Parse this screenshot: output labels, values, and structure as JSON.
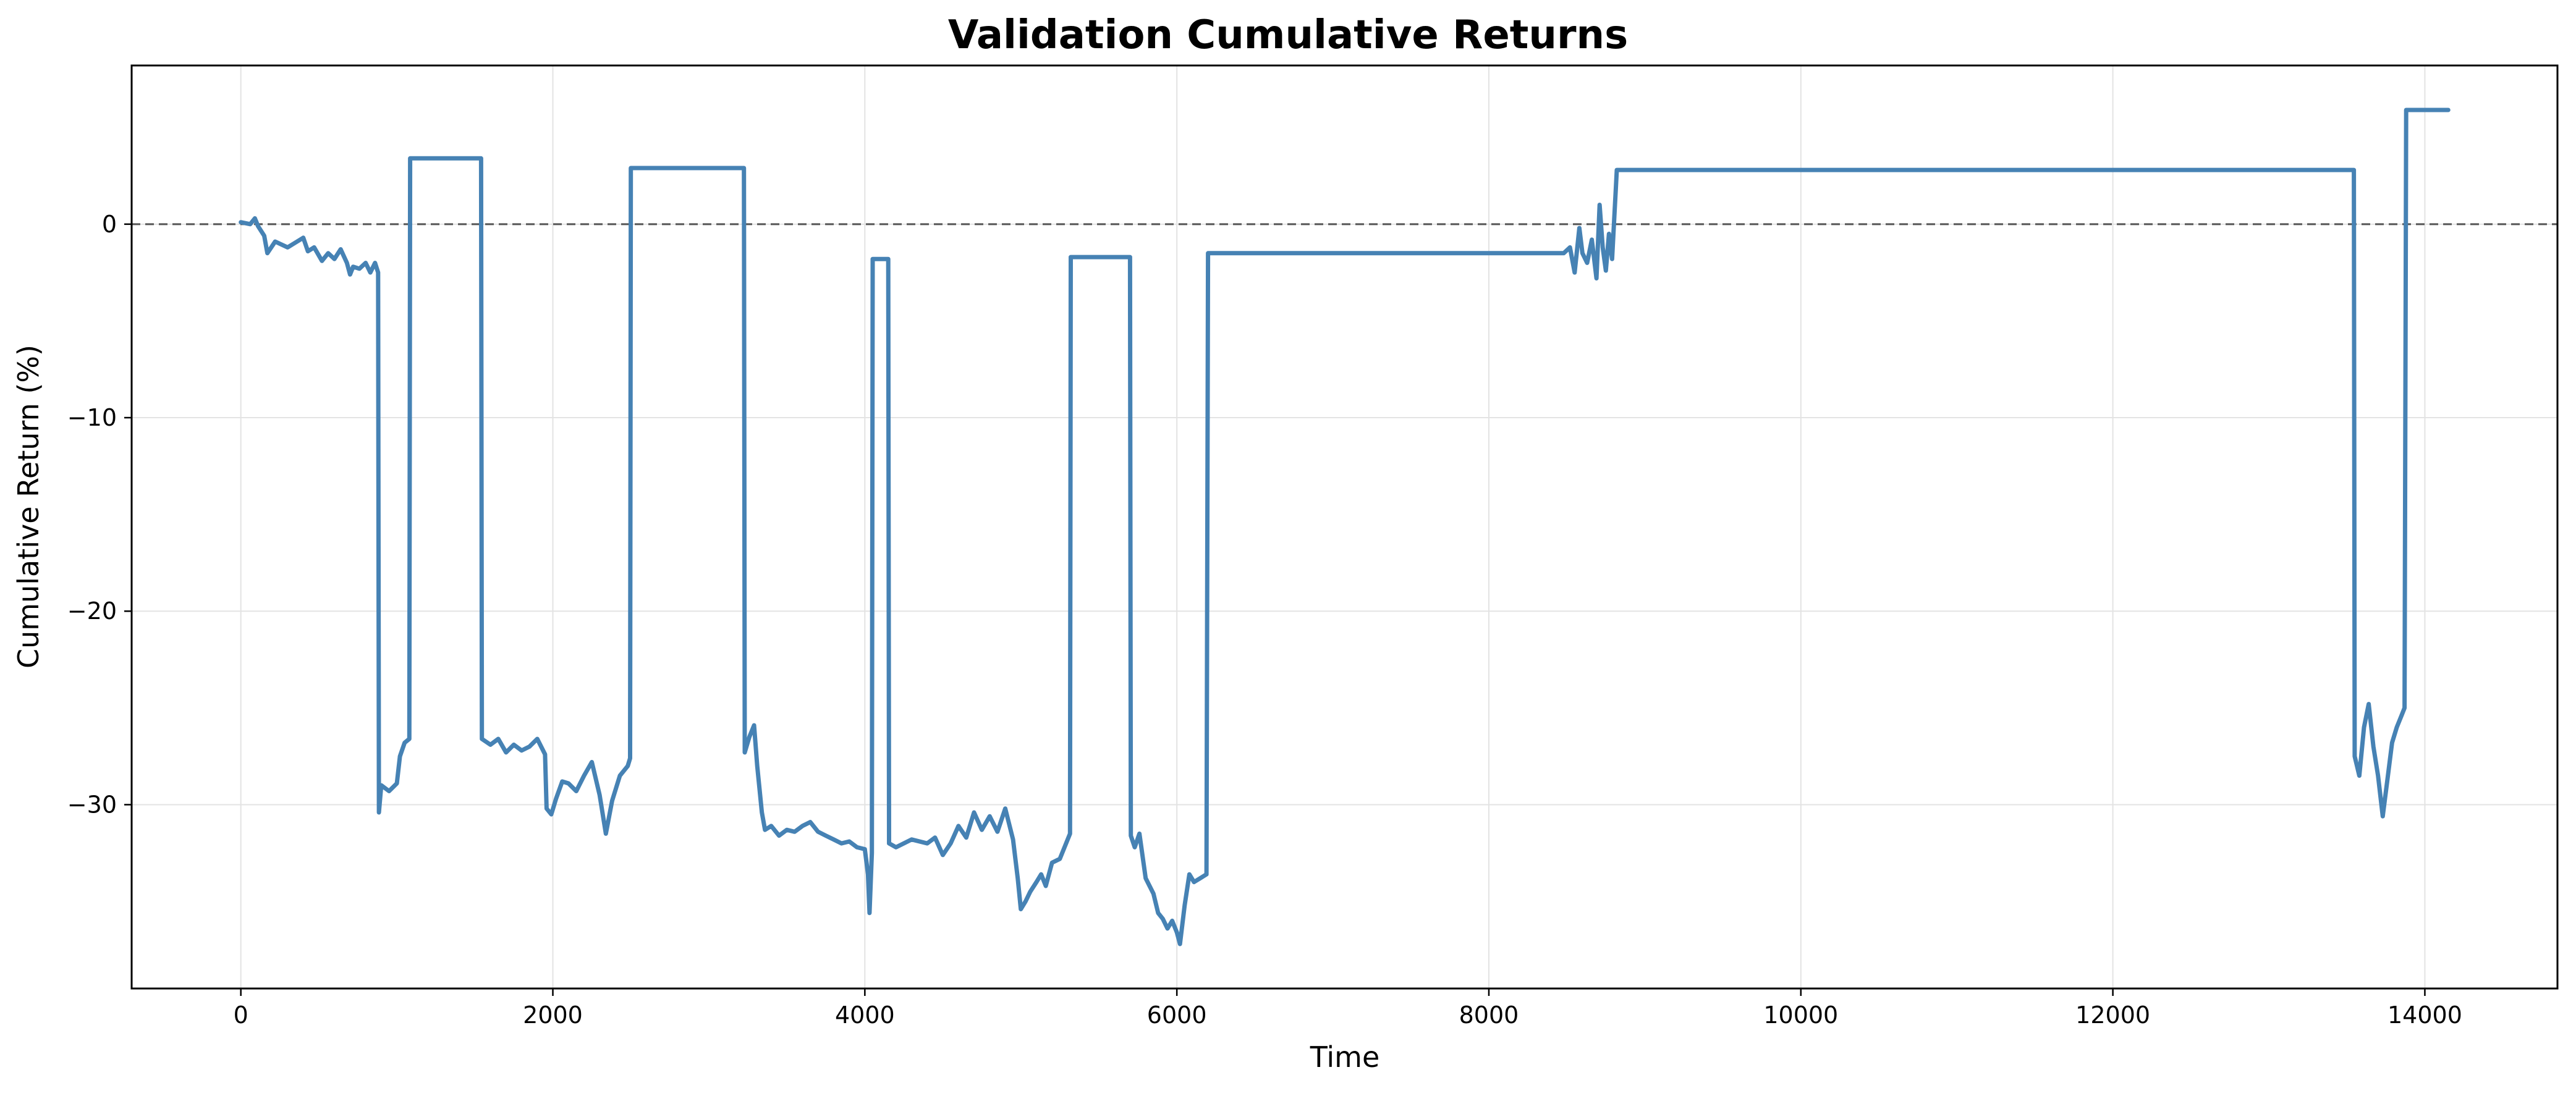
{
  "chart_data": {
    "type": "line",
    "title": "Validation Cumulative Returns",
    "xlabel": "Time",
    "ylabel": "Cumulative Return (%)",
    "xlim": [
      -700,
      14850
    ],
    "ylim": [
      -39.5,
      8.2
    ],
    "xticks": [
      0,
      2000,
      4000,
      6000,
      8000,
      10000,
      12000,
      14000
    ],
    "yticks": [
      -30,
      -20,
      -10,
      0
    ],
    "xtick_labels": [
      "0",
      "2000",
      "4000",
      "6000",
      "8000",
      "10000",
      "12000",
      "14000"
    ],
    "ytick_labels": [
      "−30",
      "−20",
      "−10",
      "0"
    ],
    "grid": true,
    "reference_line": {
      "y": 0,
      "style": "dashed",
      "color": "#555555"
    },
    "series": [
      {
        "color": "#4682b4",
        "points": [
          [
            0,
            0.1
          ],
          [
            60,
            0.0
          ],
          [
            90,
            0.3
          ],
          [
            110,
            -0.1
          ],
          [
            150,
            -0.6
          ],
          [
            170,
            -1.5
          ],
          [
            220,
            -0.9
          ],
          [
            300,
            -1.2
          ],
          [
            340,
            -1.0
          ],
          [
            400,
            -0.7
          ],
          [
            430,
            -1.4
          ],
          [
            470,
            -1.2
          ],
          [
            520,
            -1.9
          ],
          [
            560,
            -1.5
          ],
          [
            600,
            -1.8
          ],
          [
            640,
            -1.3
          ],
          [
            680,
            -2.0
          ],
          [
            700,
            -2.6
          ],
          [
            720,
            -2.2
          ],
          [
            760,
            -2.3
          ],
          [
            800,
            -2.0
          ],
          [
            830,
            -2.5
          ],
          [
            860,
            -2.0
          ],
          [
            880,
            -2.5
          ],
          [
            885,
            -30.4
          ],
          [
            900,
            -29.0
          ],
          [
            950,
            -29.3
          ],
          [
            1000,
            -28.9
          ],
          [
            1020,
            -27.5
          ],
          [
            1050,
            -26.8
          ],
          [
            1080,
            -26.6
          ],
          [
            1085,
            3.4
          ],
          [
            1540,
            3.4
          ],
          [
            1545,
            -26.6
          ],
          [
            1600,
            -26.9
          ],
          [
            1650,
            -26.6
          ],
          [
            1700,
            -27.3
          ],
          [
            1750,
            -26.9
          ],
          [
            1800,
            -27.2
          ],
          [
            1850,
            -27.0
          ],
          [
            1900,
            -26.6
          ],
          [
            1950,
            -27.4
          ],
          [
            1960,
            -30.2
          ],
          [
            1990,
            -30.5
          ],
          [
            2020,
            -29.7
          ],
          [
            2060,
            -28.8
          ],
          [
            2100,
            -28.9
          ],
          [
            2150,
            -29.3
          ],
          [
            2200,
            -28.5
          ],
          [
            2250,
            -27.8
          ],
          [
            2300,
            -29.5
          ],
          [
            2340,
            -31.5
          ],
          [
            2380,
            -29.8
          ],
          [
            2430,
            -28.5
          ],
          [
            2480,
            -28.0
          ],
          [
            2495,
            -27.6
          ],
          [
            2500,
            2.9
          ],
          [
            3225,
            2.9
          ],
          [
            3230,
            -27.3
          ],
          [
            3260,
            -26.5
          ],
          [
            3290,
            -25.9
          ],
          [
            3310,
            -28.0
          ],
          [
            3340,
            -30.4
          ],
          [
            3360,
            -31.3
          ],
          [
            3400,
            -31.1
          ],
          [
            3450,
            -31.6
          ],
          [
            3500,
            -31.3
          ],
          [
            3550,
            -31.4
          ],
          [
            3600,
            -31.1
          ],
          [
            3650,
            -30.9
          ],
          [
            3700,
            -31.4
          ],
          [
            3750,
            -31.6
          ],
          [
            3800,
            -31.8
          ],
          [
            3850,
            -32.0
          ],
          [
            3900,
            -31.9
          ],
          [
            3950,
            -32.2
          ],
          [
            4000,
            -32.3
          ],
          [
            4020,
            -33.6
          ],
          [
            4030,
            -35.6
          ],
          [
            4045,
            -32.5
          ],
          [
            4050,
            -1.8
          ],
          [
            4150,
            -1.8
          ],
          [
            4155,
            -32.0
          ],
          [
            4200,
            -32.2
          ],
          [
            4300,
            -31.8
          ],
          [
            4400,
            -32.0
          ],
          [
            4450,
            -31.7
          ],
          [
            4500,
            -32.6
          ],
          [
            4550,
            -32.0
          ],
          [
            4600,
            -31.1
          ],
          [
            4650,
            -31.7
          ],
          [
            4700,
            -30.4
          ],
          [
            4750,
            -31.3
          ],
          [
            4800,
            -30.6
          ],
          [
            4850,
            -31.4
          ],
          [
            4900,
            -30.2
          ],
          [
            4950,
            -31.8
          ],
          [
            4980,
            -33.8
          ],
          [
            5000,
            -35.4
          ],
          [
            5030,
            -35.0
          ],
          [
            5060,
            -34.5
          ],
          [
            5100,
            -34.0
          ],
          [
            5130,
            -33.6
          ],
          [
            5160,
            -34.2
          ],
          [
            5200,
            -33.0
          ],
          [
            5250,
            -32.8
          ],
          [
            5300,
            -31.8
          ],
          [
            5315,
            -31.5
          ],
          [
            5320,
            -1.7
          ],
          [
            5700,
            -1.7
          ],
          [
            5705,
            -31.6
          ],
          [
            5730,
            -32.2
          ],
          [
            5760,
            -31.5
          ],
          [
            5800,
            -33.8
          ],
          [
            5850,
            -34.6
          ],
          [
            5880,
            -35.6
          ],
          [
            5910,
            -35.9
          ],
          [
            5940,
            -36.4
          ],
          [
            5970,
            -36.0
          ],
          [
            6000,
            -36.6
          ],
          [
            6020,
            -37.2
          ],
          [
            6050,
            -35.2
          ],
          [
            6080,
            -33.6
          ],
          [
            6110,
            -34.0
          ],
          [
            6150,
            -33.8
          ],
          [
            6190,
            -33.6
          ],
          [
            6200,
            -1.5
          ],
          [
            8480,
            -1.5
          ],
          [
            8520,
            -1.2
          ],
          [
            8550,
            -2.5
          ],
          [
            8580,
            -0.2
          ],
          [
            8600,
            -1.5
          ],
          [
            8630,
            -2.0
          ],
          [
            8660,
            -0.8
          ],
          [
            8690,
            -2.8
          ],
          [
            8710,
            1.0
          ],
          [
            8730,
            -1.2
          ],
          [
            8750,
            -2.4
          ],
          [
            8770,
            -0.5
          ],
          [
            8790,
            -1.8
          ],
          [
            8805,
            0.5
          ],
          [
            8815,
            2.0
          ],
          [
            8820,
            2.8
          ],
          [
            13545,
            2.8
          ],
          [
            13550,
            -27.5
          ],
          [
            13580,
            -28.5
          ],
          [
            13610,
            -26.0
          ],
          [
            13640,
            -24.8
          ],
          [
            13670,
            -27.0
          ],
          [
            13700,
            -28.5
          ],
          [
            13730,
            -30.6
          ],
          [
            13760,
            -28.7
          ],
          [
            13790,
            -26.8
          ],
          [
            13820,
            -26.0
          ],
          [
            13850,
            -25.4
          ],
          [
            13870,
            -25.0
          ],
          [
            13880,
            5.9
          ],
          [
            14150,
            5.9
          ]
        ]
      }
    ]
  }
}
